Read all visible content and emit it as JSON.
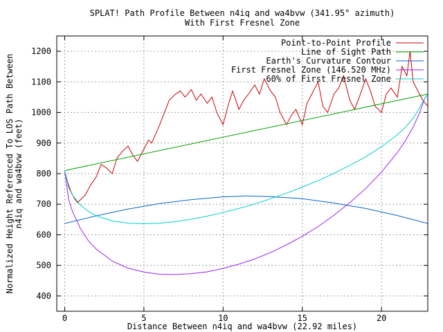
{
  "chart_data": {
    "type": "line",
    "title": "SPLAT! Path Profile Between n4iq and wa4bvw (341.95° azimuth)",
    "subtitle": "With First Fresnel Zone",
    "xlabel": "Distance Between n4iq and wa4bvw (22.92 miles)",
    "ylabel_line1": "Normalized Height Referenced To LOS Path Between",
    "ylabel_line2": "n4iq and wa4bvw (feet)",
    "xlim": [
      -0.5,
      22.92
    ],
    "ylim": [
      350,
      1250
    ],
    "x_ticks": [
      "0",
      "5",
      "10",
      "15",
      "20"
    ],
    "y_ticks": [
      "400",
      "500",
      "600",
      "700",
      "800",
      "900",
      "1000",
      "1100",
      "1200"
    ],
    "grid": true,
    "legend_position": "top-right",
    "series": [
      {
        "name": "Point-to-Point Profile",
        "color": "#cc0000",
        "x": [
          0,
          0.2,
          0.4,
          0.6,
          0.8,
          1,
          1.3,
          1.6,
          2,
          2.3,
          2.6,
          3,
          3.3,
          3.6,
          4,
          4.3,
          4.6,
          5,
          5.3,
          5.5,
          6,
          6.3,
          6.6,
          7,
          7.3,
          7.6,
          8,
          8.3,
          8.6,
          9,
          9.3,
          9.6,
          10,
          10.3,
          10.6,
          11,
          11.3,
          11.6,
          12,
          12.3,
          12.6,
          13,
          13.3,
          13.6,
          14,
          14.3,
          14.6,
          15,
          15.3,
          15.6,
          16,
          16.3,
          16.6,
          17,
          17.3,
          17.6,
          18,
          18.3,
          18.6,
          19,
          19.3,
          19.6,
          20,
          20.3,
          20.6,
          21,
          21.3,
          21.6,
          21.8,
          22,
          22.3,
          22.6,
          22.92
        ],
        "y": [
          810,
          770,
          740,
          720,
          705,
          715,
          730,
          760,
          790,
          830,
          820,
          800,
          850,
          870,
          890,
          860,
          840,
          880,
          910,
          900,
          960,
          1000,
          1040,
          1060,
          1070,
          1050,
          1075,
          1040,
          1060,
          1030,
          1050,
          1000,
          960,
          1020,
          1070,
          1010,
          1040,
          1060,
          1090,
          1060,
          1110,
          1070,
          1050,
          1000,
          960,
          990,
          1010,
          960,
          1030,
          1060,
          1100,
          1020,
          1000,
          1060,
          1080,
          1120,
          1040,
          1010,
          1050,
          1110,
          1070,
          1020,
          1000,
          1060,
          1080,
          1050,
          1150,
          1120,
          1200,
          1100,
          1070,
          1040,
          1020
        ]
      },
      {
        "name": "Line of Sight Path",
        "color": "#00a000",
        "x": [
          0,
          22.92
        ],
        "y": [
          810,
          1060
        ]
      },
      {
        "name": "Earth's Curvature Contour",
        "color": "#0066cc",
        "x": [
          0,
          2,
          4,
          6,
          8,
          10,
          11.46,
          13,
          15,
          17,
          19,
          21,
          22.92
        ],
        "y": [
          637,
          662,
          684,
          702,
          715,
          724,
          727,
          725,
          718,
          704,
          686,
          663,
          637
        ]
      },
      {
        "name": "First Fresnel Zone (146.520 MHz)",
        "color": "#a020f0",
        "x": [
          0,
          0.25,
          0.5,
          1,
          1.5,
          2,
          3,
          4,
          5,
          6,
          7,
          8,
          9,
          10,
          11,
          12,
          13,
          14,
          15,
          16,
          17,
          18,
          19,
          20,
          21,
          21.5,
          22,
          22.4,
          22.7,
          22.92
        ],
        "y": [
          810,
          715,
          675,
          620,
          580,
          553,
          514,
          491,
          478,
          471,
          470,
          473,
          479,
          490,
          504,
          521,
          542,
          567,
          595,
          627,
          664,
          705,
          751,
          805,
          869,
          907,
          952,
          998,
          1042,
          1060
        ]
      },
      {
        "name": "60% of First Fresnel Zone",
        "color": "#00cccc",
        "x": [
          0,
          0.25,
          0.5,
          1,
          1.5,
          2,
          3,
          4,
          5,
          6,
          7,
          8,
          9,
          10,
          11,
          12,
          13,
          14,
          15,
          16,
          17,
          18,
          19,
          20,
          21,
          21.5,
          22,
          22.4,
          22.7,
          22.92
        ],
        "y": [
          810,
          753,
          729,
          697,
          676,
          662,
          645,
          638,
          636,
          638,
          643,
          651,
          661,
          673,
          686,
          701,
          718,
          736,
          756,
          777,
          801,
          827,
          855,
          888,
          927,
          951,
          981,
          1015,
          1043,
          1060
        ]
      }
    ]
  }
}
